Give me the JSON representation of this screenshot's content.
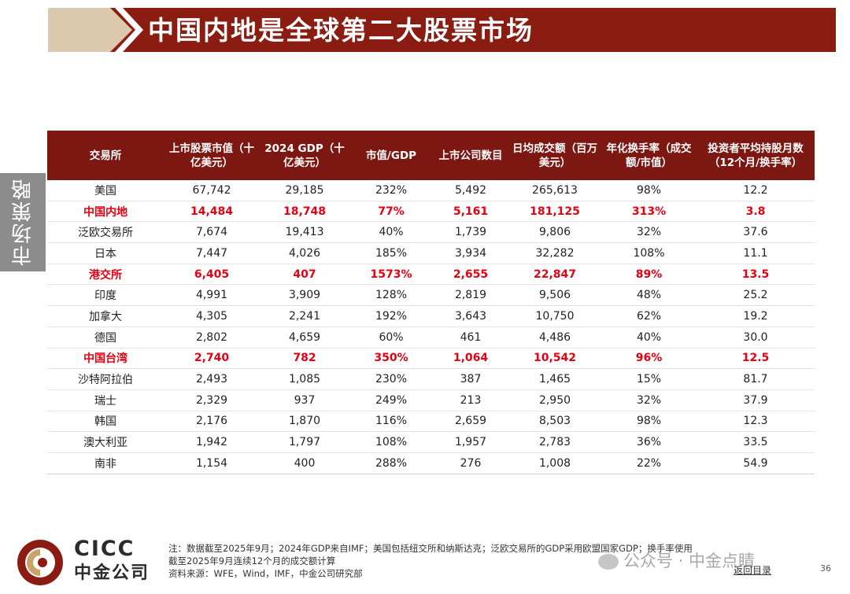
{
  "header": {
    "title": "中国内地是全球第二大股票市场"
  },
  "side_tab": {
    "label": "市场策略"
  },
  "table": {
    "headers": [
      "交易所",
      "上市股票市值（十亿美元）",
      "2024 GDP（十亿美元）",
      "市值/GDP",
      "上市公司数目",
      "日均成交额（百万美元）",
      "年化换手率（成交额/市值）",
      "投资者平均持股月数（12个月/换手率）"
    ],
    "rows": [
      {
        "cells": [
          "美国",
          "67,742",
          "29,185",
          "232%",
          "5,492",
          "265,613",
          "98%",
          "12.2"
        ],
        "highlight": false
      },
      {
        "cells": [
          "中国内地",
          "14,484",
          "18,748",
          "77%",
          "5,161",
          "181,125",
          "313%",
          "3.8"
        ],
        "highlight": true
      },
      {
        "cells": [
          "泛欧交易所",
          "7,674",
          "19,413",
          "40%",
          "1,739",
          "9,806",
          "32%",
          "37.6"
        ],
        "highlight": false
      },
      {
        "cells": [
          "日本",
          "7,447",
          "4,026",
          "185%",
          "3,934",
          "32,282",
          "108%",
          "11.1"
        ],
        "highlight": false
      },
      {
        "cells": [
          "港交所",
          "6,405",
          "407",
          "1573%",
          "2,655",
          "22,847",
          "89%",
          "13.5"
        ],
        "highlight": true
      },
      {
        "cells": [
          "印度",
          "4,991",
          "3,909",
          "128%",
          "2,819",
          "9,506",
          "48%",
          "25.2"
        ],
        "highlight": false
      },
      {
        "cells": [
          "加拿大",
          "4,305",
          "2,241",
          "192%",
          "3,643",
          "10,750",
          "62%",
          "19.2"
        ],
        "highlight": false
      },
      {
        "cells": [
          "德国",
          "2,802",
          "4,659",
          "60%",
          "461",
          "4,486",
          "40%",
          "30.0"
        ],
        "highlight": false
      },
      {
        "cells": [
          "中国台湾",
          "2,740",
          "782",
          "350%",
          "1,064",
          "10,542",
          "96%",
          "12.5"
        ],
        "highlight": true
      },
      {
        "cells": [
          "沙特阿拉伯",
          "2,493",
          "1,085",
          "230%",
          "387",
          "1,465",
          "15%",
          "81.7"
        ],
        "highlight": false
      },
      {
        "cells": [
          "瑞士",
          "2,329",
          "937",
          "249%",
          "213",
          "2,950",
          "32%",
          "37.9"
        ],
        "highlight": false
      },
      {
        "cells": [
          "韩国",
          "2,176",
          "1,870",
          "116%",
          "2,659",
          "8,503",
          "98%",
          "12.3"
        ],
        "highlight": false
      },
      {
        "cells": [
          "澳大利亚",
          "1,942",
          "1,797",
          "108%",
          "1,957",
          "2,783",
          "36%",
          "33.5"
        ],
        "highlight": false
      },
      {
        "cells": [
          "南非",
          "1,154",
          "400",
          "288%",
          "276",
          "1,008",
          "22%",
          "54.9"
        ],
        "highlight": false
      }
    ]
  },
  "footer": {
    "logo_en": "CICC",
    "logo_cn": "中金公司",
    "note_line1": "注：数据截至2025年9月；2024年GDP来自IMF；美国包括纽交所和纳斯达克；泛欧交易所的GDP采用欧盟国家GDP；换手率使用",
    "note_line2": "截至2025年9月连续12个月的成交额计算",
    "source": "资料来源：WFE，Wind，IMF，中金公司研究部",
    "watermark": "公众号 · 中金点睛",
    "back_link": "返回目录",
    "page_number": "36"
  },
  "colors": {
    "brand_red": "#8b1c12",
    "header_red": "#7c1712",
    "highlight_red": "#e60012",
    "tan": "#dcc9ad",
    "gray_tab": "#8c8c8c"
  }
}
